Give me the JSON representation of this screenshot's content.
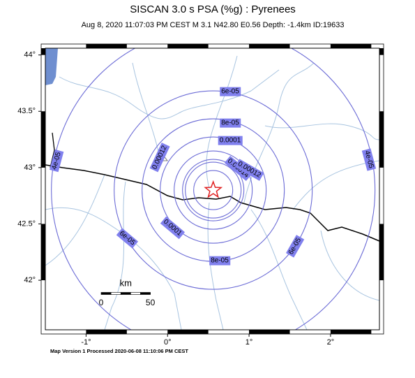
{
  "header": {
    "title": "SISCAN 3.0 s PSA (%g) : Pyrenees",
    "subtitle": "Aug  8, 2020 11:07:03 PM CEST   M 3.1   N42.80 E0.56   Depth: -1.4km   ID:19633"
  },
  "map": {
    "xlim": [
      -1.5,
      2.6
    ],
    "ylim": [
      41.56,
      44.06
    ],
    "xticks": [
      {
        "value": -1,
        "label": "-1°"
      },
      {
        "value": 0,
        "label": "0°"
      },
      {
        "value": 1,
        "label": "1°"
      },
      {
        "value": 2,
        "label": "2°"
      }
    ],
    "yticks": [
      {
        "value": 42,
        "label": "42°"
      },
      {
        "value": 42.5,
        "label": "42.5°"
      },
      {
        "value": 43,
        "label": "43°"
      },
      {
        "value": 43.5,
        "label": "43.5°"
      },
      {
        "value": 44,
        "label": "44°"
      }
    ],
    "epicenter": {
      "lon": 0.56,
      "lat": 42.8
    },
    "contours": [
      {
        "value": 4e-05,
        "label": "4e-05"
      },
      {
        "value": 6e-05,
        "label": "6e-05"
      },
      {
        "value": 8e-05,
        "label": "8e-05"
      },
      {
        "value": 0.0001,
        "label": "0.0001"
      },
      {
        "value": 0.00012,
        "label": "0.00012"
      },
      {
        "value": 0.00014,
        "label": "0.00014"
      }
    ],
    "scale_bar": {
      "unit": "km",
      "start": 0,
      "end": 50
    }
  },
  "footer": "Map Version 1 Processed 2020-06-08 11:10:06 PM CEST"
}
